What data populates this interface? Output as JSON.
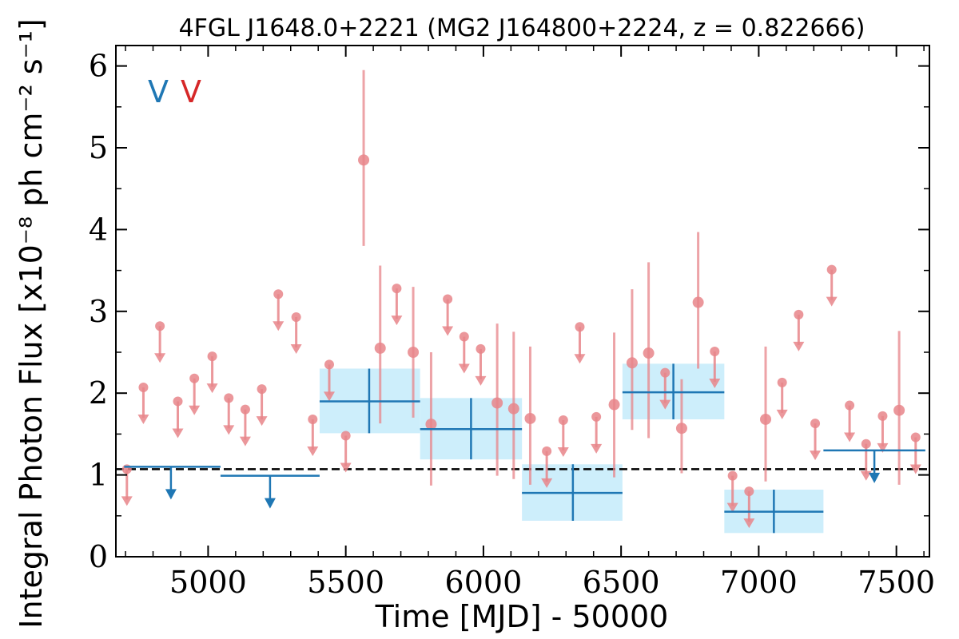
{
  "chart_data": {
    "type": "scatter",
    "title": "4FGL J1648.0+2221 (MG2 J164800+2224, z = 0.822666)",
    "xlabel": "Time [MJD] - 50000",
    "ylabel": "Integral Photon Flux [x10⁻⁸ ph cm⁻² s⁻¹]",
    "xlim": [
      4665,
      7620
    ],
    "ylim": [
      0,
      6.25
    ],
    "xticks": [
      5000,
      5500,
      6000,
      6500,
      7000,
      7500
    ],
    "yticks": [
      0,
      1,
      2,
      3,
      4,
      5,
      6
    ],
    "legend_markers": [
      "V",
      "V"
    ],
    "reference_level": 1.07,
    "colors": {
      "blue": "#1f77b4",
      "red": "#d62728",
      "red_points": "#e8858a",
      "band": "#cdeefb"
    },
    "series": [
      {
        "marker": "red",
        "points": [
          {
            "x": 4705,
            "y": 1.07,
            "ul": true
          },
          {
            "x": 4765,
            "y": 2.07,
            "ul": true
          },
          {
            "x": 4825,
            "y": 2.82,
            "ul": true
          },
          {
            "x": 4890,
            "y": 1.9,
            "ul": true
          },
          {
            "x": 4950,
            "y": 2.18,
            "ul": true
          },
          {
            "x": 5015,
            "y": 2.45,
            "ul": true
          },
          {
            "x": 5075,
            "y": 1.94,
            "ul": true
          },
          {
            "x": 5135,
            "y": 1.8,
            "ul": true
          },
          {
            "x": 5195,
            "y": 2.05,
            "ul": true
          },
          {
            "x": 5255,
            "y": 3.21,
            "ul": true
          },
          {
            "x": 5320,
            "y": 2.93,
            "ul": true
          },
          {
            "x": 5380,
            "y": 1.68,
            "ul": true
          },
          {
            "x": 5440,
            "y": 2.35,
            "ul": true
          },
          {
            "x": 5500,
            "y": 1.48,
            "ul": true
          },
          {
            "x": 5565,
            "y": 4.85,
            "lo": 3.8,
            "hi": 5.95
          },
          {
            "x": 5625,
            "y": 2.55,
            "lo": 1.63,
            "hi": 3.56
          },
          {
            "x": 5685,
            "y": 3.28,
            "ul": true
          },
          {
            "x": 5745,
            "y": 2.5,
            "lo": 1.7,
            "hi": 3.3
          },
          {
            "x": 5810,
            "y": 1.62,
            "lo": 0.87,
            "hi": 2.5
          },
          {
            "x": 5870,
            "y": 3.15,
            "ul": true
          },
          {
            "x": 5930,
            "y": 2.69,
            "ul": true
          },
          {
            "x": 5990,
            "y": 2.54,
            "ul": true
          },
          {
            "x": 6050,
            "y": 1.88,
            "lo": 0.99,
            "hi": 2.85
          },
          {
            "x": 6110,
            "y": 1.81,
            "lo": 0.95,
            "hi": 2.75
          },
          {
            "x": 6170,
            "y": 1.69,
            "lo": 0.88,
            "hi": 2.57
          },
          {
            "x": 6230,
            "y": 1.29,
            "ul": true
          },
          {
            "x": 6290,
            "y": 1.67,
            "ul": true
          },
          {
            "x": 6350,
            "y": 2.81,
            "ul": true
          },
          {
            "x": 6410,
            "y": 1.71,
            "ul": true
          },
          {
            "x": 6475,
            "y": 1.86,
            "lo": 0.97,
            "hi": 2.74
          },
          {
            "x": 6540,
            "y": 2.37,
            "lo": 1.55,
            "hi": 3.27
          },
          {
            "x": 6600,
            "y": 2.49,
            "lo": 1.45,
            "hi": 3.6
          },
          {
            "x": 6660,
            "y": 2.25,
            "ul": true
          },
          {
            "x": 6720,
            "y": 1.57,
            "lo": 1.02,
            "hi": 2.17
          },
          {
            "x": 6780,
            "y": 3.11,
            "lo": 2.3,
            "hi": 3.97
          },
          {
            "x": 6840,
            "y": 2.51,
            "ul": true
          },
          {
            "x": 6905,
            "y": 0.99,
            "ul": true
          },
          {
            "x": 6965,
            "y": 0.8,
            "ul": true
          },
          {
            "x": 7025,
            "y": 1.68,
            "lo": 0.92,
            "hi": 2.57
          },
          {
            "x": 7085,
            "y": 2.13,
            "ul": true
          },
          {
            "x": 7145,
            "y": 2.96,
            "ul": true
          },
          {
            "x": 7205,
            "y": 1.63,
            "ul": true
          },
          {
            "x": 7265,
            "y": 3.51,
            "ul": true
          },
          {
            "x": 7330,
            "y": 1.85,
            "ul": true
          },
          {
            "x": 7390,
            "y": 1.38,
            "ul": true
          },
          {
            "x": 7450,
            "y": 1.72,
            "ul": true
          },
          {
            "x": 7510,
            "y": 1.79,
            "lo": 0.88,
            "hi": 2.76
          },
          {
            "x": 7570,
            "y": 1.46,
            "ul": true
          }
        ]
      },
      {
        "marker": "blue",
        "bins": [
          {
            "x0": 4695,
            "x1": 5045,
            "y": 1.1,
            "ul": true,
            "xc": 4865
          },
          {
            "x0": 5045,
            "x1": 5405,
            "y": 0.99,
            "ul": true,
            "xc": 5225
          },
          {
            "x0": 5405,
            "x1": 5770,
            "y": 1.9,
            "lo": 1.51,
            "hi": 2.3,
            "xc": 5585
          },
          {
            "x0": 5770,
            "x1": 6140,
            "y": 1.56,
            "lo": 1.19,
            "hi": 1.94,
            "xc": 5955
          },
          {
            "x0": 6140,
            "x1": 6505,
            "y": 0.78,
            "lo": 0.44,
            "hi": 1.13,
            "xc": 6325
          },
          {
            "x0": 6505,
            "x1": 6875,
            "y": 2.01,
            "lo": 1.68,
            "hi": 2.36,
            "xc": 6690
          },
          {
            "x0": 6875,
            "x1": 7235,
            "y": 0.55,
            "lo": 0.29,
            "hi": 0.82,
            "xc": 7055
          },
          {
            "x0": 7235,
            "x1": 7605,
            "y": 1.3,
            "ul": true,
            "xc": 7420
          }
        ]
      }
    ]
  }
}
